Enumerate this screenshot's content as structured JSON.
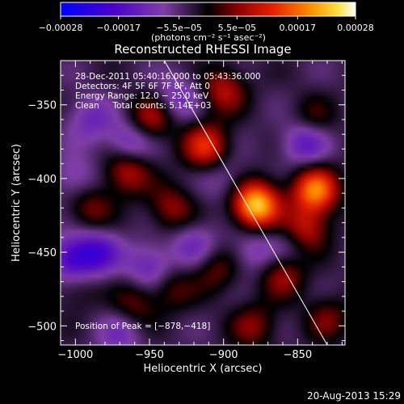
{
  "chart_data": {
    "type": "heatmap",
    "title": "Reconstructed RHESSI Image",
    "xlabel": "Heliocentric X (arcsec)",
    "ylabel": "Heliocentric Y (arcsec)",
    "xlim": [
      -1010,
      -818
    ],
    "ylim": [
      -513,
      -320
    ],
    "x_ticks": [
      -1000,
      -950,
      -900,
      -850
    ],
    "x_tick_labels": [
      "−1000",
      "−950",
      "−900",
      "−850"
    ],
    "y_ticks": [
      -350,
      -400,
      -450,
      -500
    ],
    "y_tick_labels": [
      "−350",
      "−400",
      "−450",
      "−500"
    ],
    "colorbar": {
      "ticks": [
        -0.00028,
        -0.00017,
        -5.5e-05,
        5.5e-05,
        0.00017,
        0.00028
      ],
      "tick_labels": [
        "−0.00028",
        "−0.00017",
        "−5.5e−05",
        "5.5e−05",
        "0.00017",
        "0.00028"
      ],
      "units_label": "(photons cm⁻² s⁻¹ asec⁻²)",
      "range": [
        -0.00028,
        0.00028
      ]
    },
    "info_lines": [
      "28-Dec-2011 05:40:16.000 to 05:43:36.000",
      "Detectors: 4F 5F 6F 7F 8F, Att 0",
      "Energy Range: 12.0 − 25.0 keV",
      "Clean     Total counts: 5.14E+03"
    ],
    "peak_label": "Position of Peak = [−878,−418]",
    "peak": [
      -878,
      -418
    ],
    "limb_line": [
      [
        -940,
        -320
      ],
      [
        -830,
        -513
      ]
    ],
    "sources": [
      {
        "x": -878,
        "y": -418,
        "value": 0.00028
      },
      {
        "x": -838,
        "y": -408,
        "value": 0.00022
      },
      {
        "x": -845,
        "y": -435,
        "value": 0.00014
      },
      {
        "x": -912,
        "y": -378,
        "value": 0.00016
      },
      {
        "x": -900,
        "y": -340,
        "value": 0.00012
      },
      {
        "x": -965,
        "y": -395,
        "value": 0.00013
      },
      {
        "x": -950,
        "y": -360,
        "value": 0.00012
      },
      {
        "x": -935,
        "y": -420,
        "value": 0.0001
      },
      {
        "x": -990,
        "y": -420,
        "value": 9e-05
      },
      {
        "x": -860,
        "y": -465,
        "value": 0.00011
      },
      {
        "x": -905,
        "y": -462,
        "value": 8e-05
      },
      {
        "x": -960,
        "y": -485,
        "value": 8e-05
      },
      {
        "x": -935,
        "y": -475,
        "value": 7e-05
      },
      {
        "x": -880,
        "y": -500,
        "value": 9e-05
      },
      {
        "x": -830,
        "y": -495,
        "value": 8e-05
      },
      {
        "x": -840,
        "y": -360,
        "value": 7e-05
      },
      {
        "x": -1000,
        "y": -475,
        "value": 5e-05
      },
      {
        "x": -1003,
        "y": -455,
        "value": -0.00014
      },
      {
        "x": -985,
        "y": -450,
        "value": -0.00012
      },
      {
        "x": -950,
        "y": -460,
        "value": -0.0001
      },
      {
        "x": -963,
        "y": -375,
        "value": -0.00011
      },
      {
        "x": -845,
        "y": -375,
        "value": -0.00012
      },
      {
        "x": -990,
        "y": -360,
        "value": -8e-05
      },
      {
        "x": -920,
        "y": -445,
        "value": -8e-05
      },
      {
        "x": -880,
        "y": -450,
        "value": -7e-05
      },
      {
        "x": -900,
        "y": -400,
        "value": -5e-05
      },
      {
        "x": -930,
        "y": -345,
        "value": -8e-05
      },
      {
        "x": -855,
        "y": -445,
        "value": -6e-05
      },
      {
        "x": -970,
        "y": -505,
        "value": -7e-05
      },
      {
        "x": -1000,
        "y": -400,
        "value": -7e-05
      }
    ]
  },
  "footer": {
    "date": "20-Aug-2013 15:29"
  }
}
